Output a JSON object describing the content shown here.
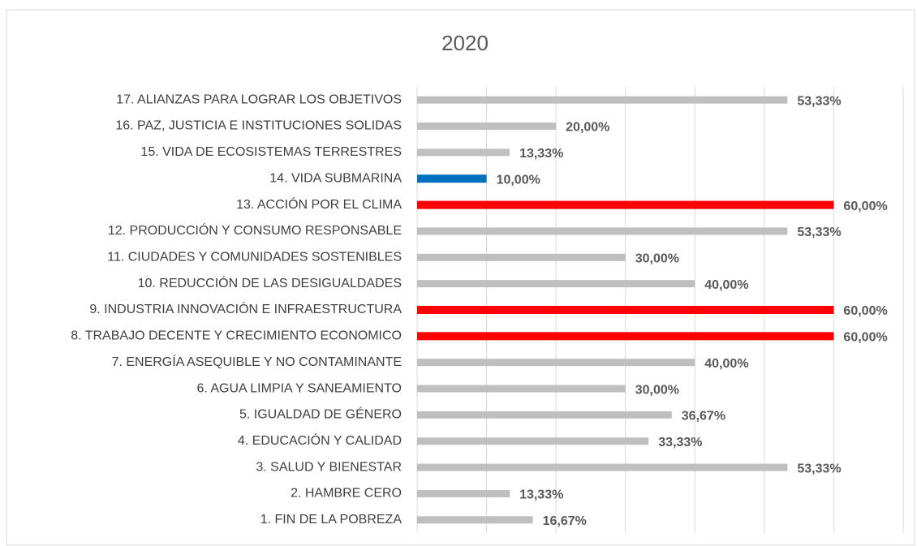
{
  "chart_data": {
    "type": "barh",
    "title": "2020",
    "categories": [
      "17. ALIANZAS PARA LOGRAR LOS OBJETIVOS",
      "16. PAZ, JUSTICIA E INSTITUCIONES SOLIDAS",
      "15. VIDA DE ECOSISTEMAS TERRESTRES",
      "14. VIDA SUBMARINA",
      "13. ACCIÓN POR EL CLIMA",
      "12. PRODUCCIÓN Y CONSUMO RESPONSABLE",
      "11. CIUDADES Y COMUNIDADES SOSTENIBLES",
      "10. REDUCCIÓN DE LAS DESIGUALDADES",
      "9. INDUSTRIA INNOVACIÓN E INFRAESTRUCTURA",
      "8. TRABAJO DECENTE Y CRECIMIENTO ECONOMICO",
      "7. ENERGÍA ASEQUIBLE Y NO CONTAMINANTE",
      "6. AGUA LIMPIA Y SANEAMIENTO",
      "5. IGUALDAD DE GÉNERO",
      "4. EDUCACIÓN Y CALIDAD",
      "3. SALUD Y BIENESTAR",
      "2. HAMBRE CERO",
      "1. FIN DE LA POBREZA"
    ],
    "values": [
      53.33,
      20.0,
      13.33,
      10.0,
      60.0,
      53.33,
      30.0,
      40.0,
      60.0,
      60.0,
      40.0,
      30.0,
      36.67,
      33.33,
      53.33,
      13.33,
      16.67
    ],
    "value_labels": [
      "53,33%",
      "20,00%",
      "13,33%",
      "10,00%",
      "60,00%",
      "53,33%",
      "30,00%",
      "40,00%",
      "60,00%",
      "60,00%",
      "40,00%",
      "30,00%",
      "36,67%",
      "33,33%",
      "53,33%",
      "13,33%",
      "16,67%"
    ],
    "colors": [
      "#bfbfbf",
      "#bfbfbf",
      "#bfbfbf",
      "#0070c0",
      "#ff0000",
      "#bfbfbf",
      "#bfbfbf",
      "#bfbfbf",
      "#ff0000",
      "#ff0000",
      "#bfbfbf",
      "#bfbfbf",
      "#bfbfbf",
      "#bfbfbf",
      "#bfbfbf",
      "#bfbfbf",
      "#bfbfbf"
    ],
    "xlim": [
      0,
      70
    ],
    "xticks": [
      0,
      10,
      20,
      30,
      40,
      50,
      60,
      70
    ],
    "grid": true
  }
}
